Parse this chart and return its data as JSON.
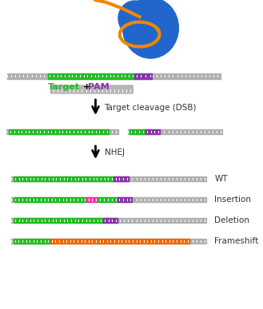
{
  "bg_color": "#ffffff",
  "gray_color": "#b0b0b0",
  "green_color": "#22bb22",
  "purple_color": "#8833aa",
  "pink_color": "#ff33aa",
  "orange_color": "#ee6600",
  "blue_cas9": "#2266cc",
  "orange_rna": "#ee8800",
  "text_color": "#333333",
  "label_target": "Target",
  "label_plus": "+",
  "label_pam": "PAM",
  "label_cleavage": "Target cleavage (DSB)",
  "label_nhej": "NHEJ",
  "label_wt": "WT",
  "label_insertion": "Insertion",
  "label_deletion": "Deletion",
  "label_frameshift": "Frameshift"
}
